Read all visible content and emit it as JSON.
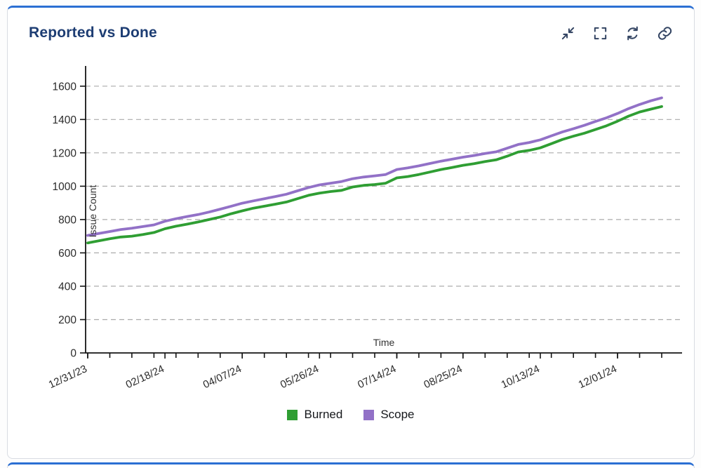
{
  "card": {
    "title": "Reported vs Done",
    "toolbar_icons": [
      "collapse-icon",
      "fullscreen-icon",
      "refresh-icon",
      "link-icon"
    ]
  },
  "colors": {
    "accent": "#2b6fd3",
    "title": "#1d3d73",
    "icon": "#344563",
    "burned_green": "#2f9e33",
    "scope_purple": "#9271c7"
  },
  "chart_data": {
    "type": "line",
    "title": "Reported vs Done",
    "xlabel": "Time",
    "ylabel": "Issue Count",
    "ylim": [
      0,
      1700
    ],
    "yticks": [
      0,
      200,
      400,
      600,
      800,
      1000,
      1200,
      1400,
      1600
    ],
    "x_range": [
      0,
      52
    ],
    "x_tick_positions": [
      0,
      7,
      14,
      21,
      28,
      34,
      41,
      48
    ],
    "x_tick_labels": [
      "12/31/23",
      "02/18/24",
      "04/07/24",
      "05/26/24",
      "07/14/24",
      "08/25/24",
      "10/13/24",
      "12/01/24"
    ],
    "grid": "horizontal-dashed",
    "legend_position": "bottom",
    "series": [
      {
        "name": "Burned",
        "color": "#2f9e33",
        "values": [
          660,
          672,
          685,
          695,
          700,
          710,
          722,
          745,
          760,
          772,
          785,
          800,
          815,
          835,
          852,
          868,
          880,
          892,
          905,
          925,
          945,
          958,
          968,
          975,
          995,
          1005,
          1010,
          1018,
          1050,
          1058,
          1070,
          1085,
          1100,
          1112,
          1125,
          1135,
          1148,
          1158,
          1180,
          1205,
          1215,
          1230,
          1255,
          1280,
          1300,
          1318,
          1340,
          1362,
          1390,
          1420,
          1445,
          1462,
          1478
        ]
      },
      {
        "name": "Scope",
        "color": "#9271c7",
        "values": [
          705,
          716,
          728,
          740,
          748,
          758,
          768,
          790,
          805,
          818,
          830,
          845,
          862,
          880,
          898,
          912,
          925,
          938,
          952,
          972,
          992,
          1008,
          1018,
          1028,
          1045,
          1055,
          1062,
          1070,
          1100,
          1110,
          1122,
          1136,
          1150,
          1162,
          1174,
          1184,
          1196,
          1206,
          1228,
          1250,
          1262,
          1278,
          1302,
          1325,
          1345,
          1365,
          1388,
          1410,
          1436,
          1465,
          1490,
          1512,
          1530
        ]
      }
    ]
  }
}
